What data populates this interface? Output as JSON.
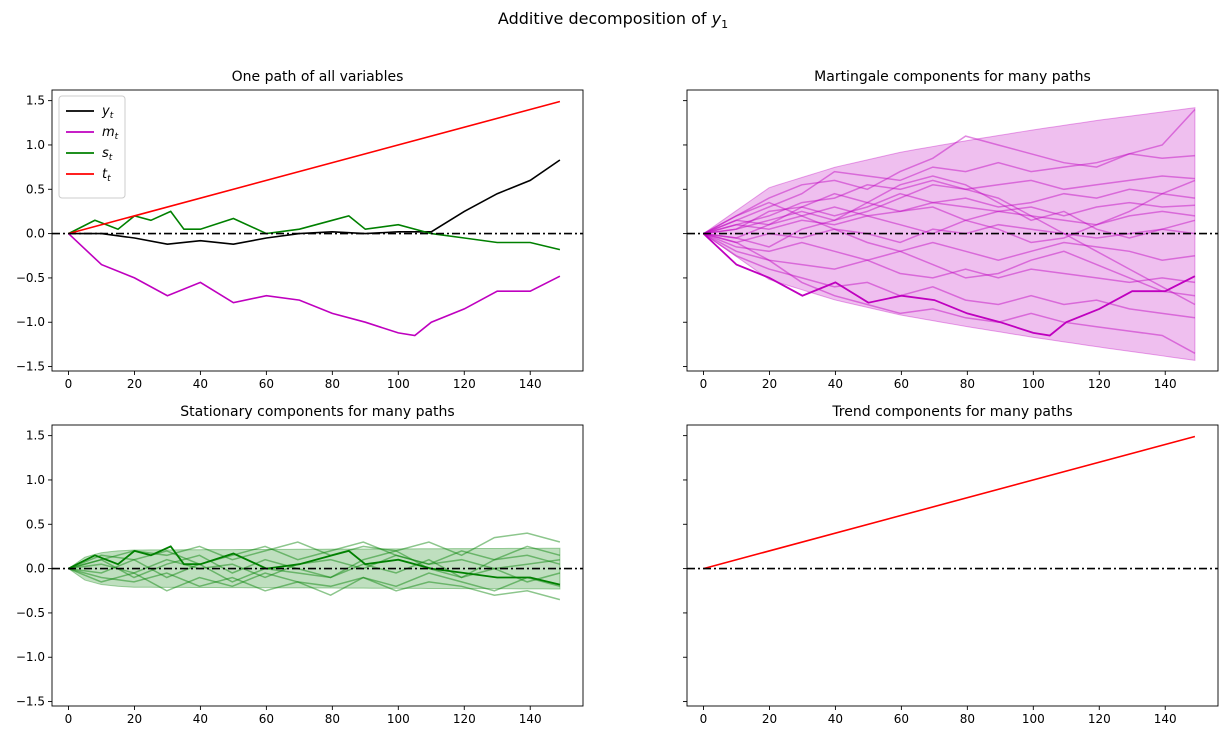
{
  "figure": {
    "title_main": "Additive decomposition of ",
    "title_var": "y",
    "title_sub": "1"
  },
  "colors": {
    "y": "#000000",
    "m": "#bf00bf",
    "s": "#008000",
    "t": "#ff0000",
    "m_band": "#bf00bf",
    "s_band": "#008000",
    "zero_line": "#000000"
  },
  "chart_data": [
    {
      "type": "line",
      "title": "One path of all variables",
      "xlim": [
        -5,
        156
      ],
      "ylim": [
        -1.55,
        1.62
      ],
      "xticks": [
        0,
        20,
        40,
        60,
        80,
        100,
        120,
        140
      ],
      "yticks": [
        -1.5,
        -1.0,
        -0.5,
        0.0,
        0.5,
        1.0,
        1.5
      ],
      "zero_line": true,
      "legend": {
        "placement": "upper-left",
        "entries": [
          {
            "var": "y",
            "sub": "t",
            "color_key": "y"
          },
          {
            "var": "m",
            "sub": "t",
            "color_key": "m"
          },
          {
            "var": "s",
            "sub": "t",
            "color_key": "s"
          },
          {
            "var": "t",
            "sub": "t",
            "color_key": "t"
          }
        ]
      },
      "series": [
        {
          "id": "y",
          "color_key": "y",
          "x": [
            0,
            10,
            20,
            30,
            40,
            50,
            60,
            70,
            80,
            90,
            100,
            110,
            120,
            130,
            140,
            149
          ],
          "y": [
            0.0,
            0.0,
            -0.05,
            -0.12,
            -0.08,
            -0.12,
            -0.05,
            0.0,
            0.02,
            0.0,
            0.02,
            0.02,
            0.25,
            0.45,
            0.6,
            0.83
          ]
        },
        {
          "id": "m",
          "color_key": "m",
          "x": [
            0,
            10,
            20,
            30,
            40,
            50,
            60,
            70,
            80,
            90,
            100,
            105,
            110,
            120,
            130,
            140,
            149
          ],
          "y": [
            0.0,
            -0.35,
            -0.5,
            -0.7,
            -0.55,
            -0.78,
            -0.7,
            -0.75,
            -0.9,
            -1.0,
            -1.12,
            -1.15,
            -1.0,
            -0.85,
            -0.65,
            -0.65,
            -0.48
          ]
        },
        {
          "id": "s",
          "color_key": "s",
          "x": [
            0,
            8,
            15,
            20,
            25,
            31,
            35,
            40,
            50,
            60,
            70,
            80,
            85,
            90,
            100,
            110,
            120,
            130,
            140,
            149
          ],
          "y": [
            0.0,
            0.15,
            0.05,
            0.2,
            0.15,
            0.25,
            0.05,
            0.05,
            0.17,
            0.0,
            0.05,
            0.15,
            0.2,
            0.05,
            0.1,
            0.0,
            -0.05,
            -0.1,
            -0.1,
            -0.18
          ]
        },
        {
          "id": "t",
          "color_key": "t",
          "x": [
            0,
            149
          ],
          "y": [
            0.0,
            1.49
          ]
        }
      ]
    },
    {
      "type": "line",
      "title": "Martingale components for many paths",
      "xlim": [
        -5,
        156
      ],
      "ylim": [
        -1.55,
        1.62
      ],
      "xticks": [
        0,
        20,
        40,
        60,
        80,
        100,
        120,
        140
      ],
      "yticks": [
        -1.5,
        -1.0,
        -0.5,
        0.0,
        0.5,
        1.0,
        1.5
      ],
      "zero_line": true,
      "band": {
        "color_key": "m_band",
        "x": [
          0,
          20,
          40,
          60,
          80,
          100,
          120,
          149
        ],
        "upper": [
          0.0,
          0.52,
          0.75,
          0.92,
          1.05,
          1.17,
          1.28,
          1.42
        ],
        "lower": [
          0.0,
          -0.52,
          -0.75,
          -0.92,
          -1.05,
          -1.17,
          -1.28,
          -1.43
        ]
      },
      "highlight": {
        "color_key": "m",
        "x": [
          0,
          10,
          20,
          30,
          40,
          50,
          60,
          70,
          80,
          90,
          100,
          105,
          110,
          120,
          130,
          140,
          149
        ],
        "y": [
          0.0,
          -0.35,
          -0.5,
          -0.7,
          -0.55,
          -0.78,
          -0.7,
          -0.75,
          -0.9,
          -1.0,
          -1.12,
          -1.15,
          -1.0,
          -0.85,
          -0.65,
          -0.65,
          -0.48
        ]
      },
      "paths": [
        {
          "y": [
            0.0,
            0.2,
            0.4,
            0.55,
            0.6,
            0.5,
            0.7,
            0.85,
            1.1,
            1.0,
            0.9,
            0.8,
            0.75,
            0.9,
            1.0,
            1.4
          ]
        },
        {
          "y": [
            0.0,
            0.15,
            0.3,
            0.45,
            0.7,
            0.65,
            0.6,
            0.75,
            0.7,
            0.8,
            0.7,
            0.75,
            0.8,
            0.9,
            0.85,
            0.88
          ]
        },
        {
          "y": [
            0.0,
            0.1,
            0.2,
            0.35,
            0.4,
            0.55,
            0.5,
            0.6,
            0.5,
            0.55,
            0.6,
            0.5,
            0.55,
            0.6,
            0.65,
            0.62
          ]
        },
        {
          "y": [
            0.0,
            0.05,
            0.25,
            0.3,
            0.2,
            0.3,
            0.45,
            0.35,
            0.4,
            0.3,
            0.35,
            0.45,
            0.4,
            0.5,
            0.45,
            0.4
          ]
        },
        {
          "y": [
            0.0,
            -0.05,
            0.1,
            0.2,
            0.3,
            0.2,
            0.25,
            0.35,
            0.3,
            0.25,
            0.3,
            0.2,
            0.3,
            0.35,
            0.3,
            0.32
          ]
        },
        {
          "y": [
            0.0,
            0.1,
            0.05,
            0.15,
            0.1,
            0.2,
            0.1,
            0.0,
            0.15,
            0.25,
            0.2,
            0.15,
            0.1,
            0.2,
            0.25,
            0.2
          ]
        },
        {
          "y": [
            0.0,
            -0.1,
            0.0,
            -0.05,
            0.05,
            0.0,
            -0.1,
            0.05,
            0.0,
            0.1,
            0.05,
            0.0,
            -0.05,
            0.0,
            0.05,
            0.0
          ]
        },
        {
          "y": [
            0.0,
            -0.15,
            -0.2,
            -0.1,
            -0.2,
            -0.3,
            -0.2,
            -0.1,
            -0.2,
            -0.3,
            -0.2,
            -0.1,
            -0.15,
            -0.2,
            -0.3,
            -0.25
          ]
        },
        {
          "y": [
            0.0,
            -0.2,
            -0.3,
            -0.35,
            -0.4,
            -0.3,
            -0.45,
            -0.5,
            -0.4,
            -0.5,
            -0.4,
            -0.45,
            -0.5,
            -0.55,
            -0.5,
            -0.55
          ]
        },
        {
          "y": [
            0.0,
            -0.25,
            -0.4,
            -0.5,
            -0.6,
            -0.55,
            -0.7,
            -0.6,
            -0.75,
            -0.8,
            -0.7,
            -0.8,
            -0.75,
            -0.85,
            -0.9,
            -0.95
          ]
        },
        {
          "y": [
            0.0,
            -0.1,
            -0.3,
            -0.55,
            -0.7,
            -0.8,
            -0.9,
            -0.85,
            -0.95,
            -1.0,
            -0.9,
            -1.0,
            -1.05,
            -1.1,
            -1.15,
            -1.35
          ]
        },
        {
          "y": [
            0.0,
            0.15,
            0.1,
            0.3,
            0.45,
            0.35,
            0.25,
            0.3,
            0.15,
            0.05,
            -0.1,
            -0.05,
            0.1,
            0.25,
            0.45,
            0.6
          ]
        },
        {
          "y": [
            0.0,
            -0.05,
            -0.15,
            0.05,
            0.15,
            0.25,
            0.4,
            0.55,
            0.5,
            0.4,
            0.2,
            0.0,
            -0.2,
            -0.4,
            -0.6,
            -0.8
          ]
        },
        {
          "y": [
            0.0,
            0.2,
            0.35,
            0.2,
            0.05,
            -0.1,
            -0.2,
            -0.35,
            -0.5,
            -0.45,
            -0.3,
            -0.2,
            -0.35,
            -0.5,
            -0.65,
            -0.7
          ]
        },
        {
          "y": [
            0.0,
            0.05,
            0.15,
            0.25,
            0.15,
            0.35,
            0.55,
            0.65,
            0.55,
            0.35,
            0.15,
            0.25,
            0.05,
            -0.05,
            0.05,
            0.15
          ]
        }
      ]
    },
    {
      "type": "line",
      "title": "Stationary components for many paths",
      "xlim": [
        -5,
        156
      ],
      "ylim": [
        -1.55,
        1.62
      ],
      "xticks": [
        0,
        20,
        40,
        60,
        80,
        100,
        120,
        140
      ],
      "yticks": [
        -1.5,
        -1.0,
        -0.5,
        0.0,
        0.5,
        1.0,
        1.5
      ],
      "zero_line": true,
      "band": {
        "color_key": "s_band",
        "x": [
          0,
          5,
          10,
          15,
          20,
          149
        ],
        "upper": [
          0.0,
          0.13,
          0.18,
          0.2,
          0.21,
          0.23
        ],
        "lower": [
          0.0,
          -0.13,
          -0.18,
          -0.2,
          -0.21,
          -0.23
        ]
      },
      "highlight": {
        "color_key": "s",
        "x": [
          0,
          8,
          15,
          20,
          25,
          31,
          35,
          40,
          50,
          60,
          70,
          80,
          85,
          90,
          100,
          110,
          120,
          130,
          140,
          149
        ],
        "y": [
          0.0,
          0.15,
          0.05,
          0.2,
          0.15,
          0.25,
          0.05,
          0.05,
          0.17,
          0.0,
          0.05,
          0.15,
          0.2,
          0.05,
          0.1,
          0.0,
          -0.05,
          -0.1,
          -0.1,
          -0.18
        ]
      },
      "paths": [
        {
          "y": [
            0.0,
            0.1,
            0.2,
            0.15,
            0.25,
            0.1,
            0.2,
            0.3,
            0.15,
            0.25,
            0.2,
            0.3,
            0.15,
            0.35,
            0.4,
            0.3
          ]
        },
        {
          "y": [
            0.0,
            -0.1,
            -0.15,
            -0.05,
            -0.2,
            -0.1,
            -0.25,
            -0.15,
            -0.2,
            -0.1,
            -0.25,
            -0.15,
            -0.2,
            -0.3,
            -0.25,
            -0.35
          ]
        },
        {
          "y": [
            0.0,
            0.05,
            -0.05,
            0.1,
            0.0,
            0.05,
            -0.1,
            0.05,
            0.1,
            0.0,
            0.15,
            0.05,
            0.1,
            0.0,
            0.05,
            0.1
          ]
        },
        {
          "y": [
            0.0,
            -0.05,
            0.1,
            -0.1,
            0.05,
            -0.15,
            0.0,
            -0.05,
            -0.1,
            0.05,
            -0.05,
            0.1,
            -0.1,
            0.0,
            -0.15,
            -0.05
          ]
        },
        {
          "y": [
            0.0,
            0.15,
            0.1,
            0.2,
            0.05,
            0.15,
            0.25,
            0.1,
            0.2,
            0.3,
            0.15,
            0.05,
            0.2,
            0.1,
            0.25,
            0.15
          ]
        },
        {
          "y": [
            0.0,
            -0.15,
            -0.05,
            -0.25,
            -0.1,
            -0.2,
            -0.05,
            -0.15,
            -0.3,
            -0.1,
            -0.2,
            -0.05,
            -0.15,
            -0.25,
            -0.1,
            -0.2
          ]
        },
        {
          "y": [
            0.0,
            0.1,
            -0.1,
            0.05,
            0.15,
            -0.05,
            0.1,
            0.0,
            -0.1,
            0.1,
            0.2,
            0.0,
            -0.1,
            0.1,
            0.15,
            0.05
          ]
        }
      ]
    },
    {
      "type": "line",
      "title": "Trend components for many paths",
      "xlim": [
        -5,
        156
      ],
      "ylim": [
        -1.55,
        1.62
      ],
      "xticks": [
        0,
        20,
        40,
        60,
        80,
        100,
        120,
        140
      ],
      "yticks": [
        -1.5,
        -1.0,
        -0.5,
        0.0,
        0.5,
        1.0,
        1.5
      ],
      "zero_line": true,
      "series": [
        {
          "id": "t",
          "color_key": "t",
          "x": [
            0,
            149
          ],
          "y": [
            0.0,
            1.49
          ]
        }
      ]
    }
  ]
}
